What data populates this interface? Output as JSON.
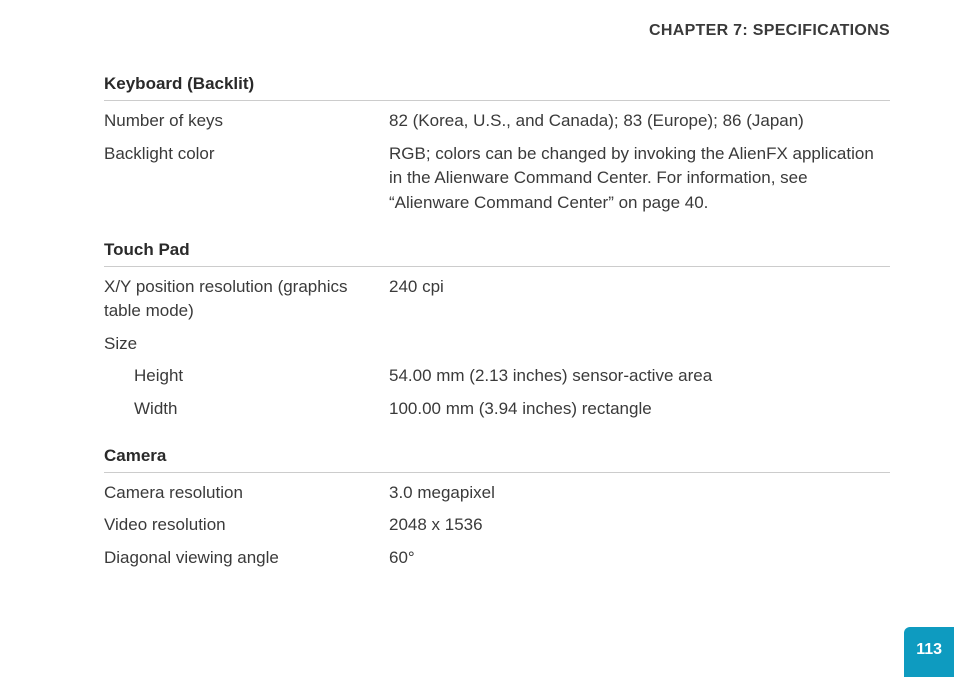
{
  "header": {
    "chapter_title": "CHAPTER 7: SPECIFICATIONS"
  },
  "sections": {
    "keyboard": {
      "title": "Keyboard (Backlit)",
      "rows": {
        "num_keys_label": "Number of keys",
        "num_keys_value": "82 (Korea, U.S., and Canada); 83 (Europe); 86 (Japan)",
        "backlight_label": "Backlight color",
        "backlight_value": "RGB; colors can be changed by invoking the AlienFX application in the Alienware Command Center. For information, see “Alienware Command Center” on page 40."
      }
    },
    "touchpad": {
      "title": "Touch Pad",
      "rows": {
        "xy_label": "X/Y position resolution (graphics table mode)",
        "xy_value": "240 cpi",
        "size_label": "Size",
        "height_label": "Height",
        "height_value": "54.00 mm (2.13 inches) sensor-active area",
        "width_label": "Width",
        "width_value": "100.00 mm (3.94 inches) rectangle"
      }
    },
    "camera": {
      "title": "Camera",
      "rows": {
        "camres_label": "Camera resolution",
        "camres_value": "3.0 megapixel",
        "vidres_label": "Video resolution",
        "vidres_value": "2048 x 1536",
        "diag_label": "Diagonal viewing angle",
        "diag_value": "60°"
      }
    }
  },
  "footer": {
    "page_number": "113",
    "tab_color": "#0e9bc0"
  },
  "styling": {
    "body_font_size": 17,
    "heading_color": "#3a3a3a",
    "text_color": "#3a3a3a",
    "divider_color": "#cccccc",
    "background_color": "#ffffff",
    "tab_text_color": "#ffffff",
    "label_column_width": 285
  }
}
